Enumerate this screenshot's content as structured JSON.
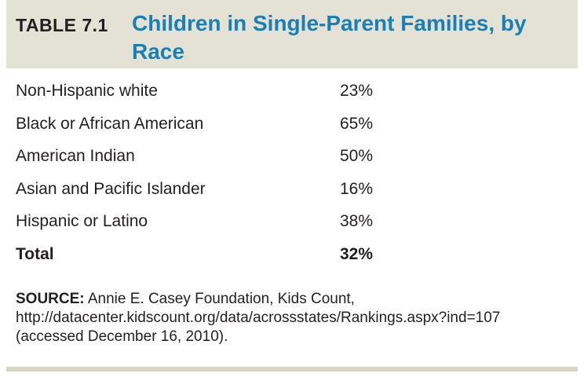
{
  "table": {
    "label": "TABLE 7.1",
    "title": "Children in Single-Parent Families, by Race",
    "rows": [
      {
        "label": "Non-Hispanic white",
        "value": "23%"
      },
      {
        "label": "Black or African American",
        "value": "65%"
      },
      {
        "label": "American Indian",
        "value": "50%"
      },
      {
        "label": "Asian and Pacific Islander",
        "value": "16%"
      },
      {
        "label": "Hispanic or Latino",
        "value": "38%"
      }
    ],
    "total": {
      "label": "Total",
      "value": "32%"
    }
  },
  "source": {
    "label": "SOURCE:",
    "text": "Annie E. Casey Foundation, Kids Count, http://datacenter.kidscount.org/data/acrossstates/Rankings.aspx?ind=107 (accessed December 16, 2010)."
  },
  "colors": {
    "header_background": "#e3e2d4",
    "title_color": "#1b7fb5",
    "rule_color": "#d6d5c6"
  }
}
